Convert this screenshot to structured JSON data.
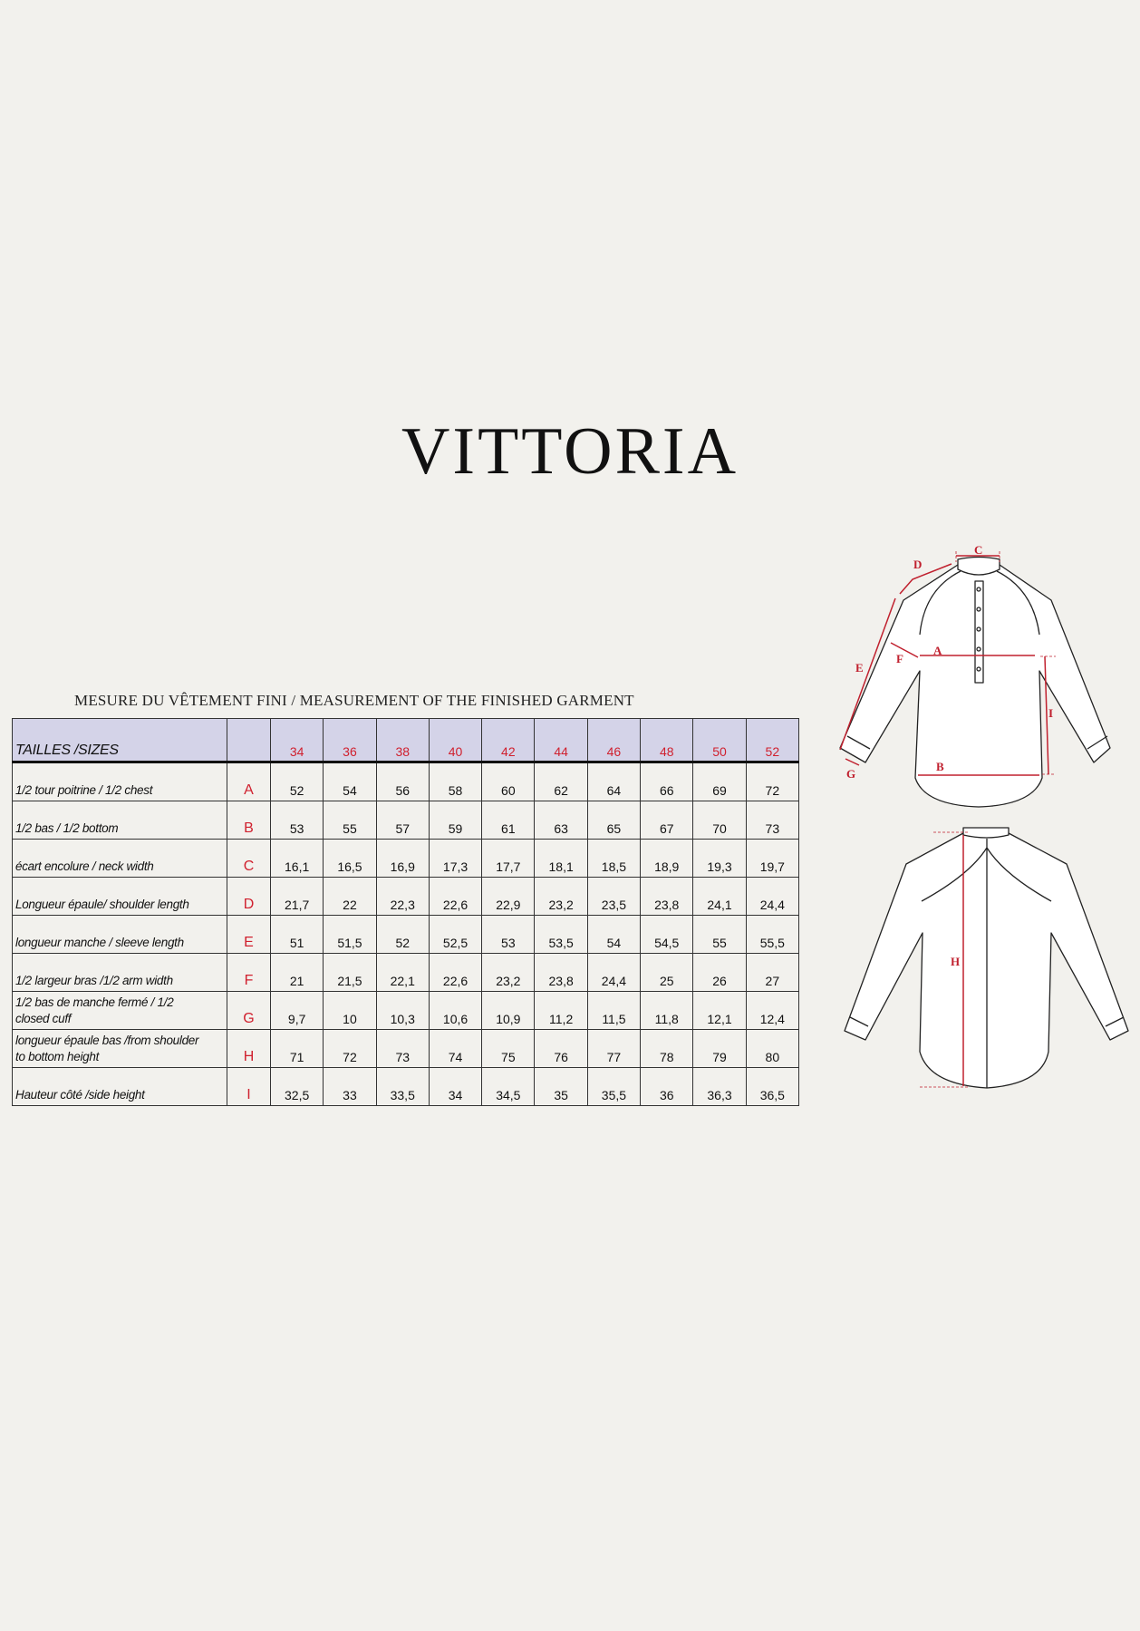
{
  "title": "VITTORIA",
  "subtitle": "MESURE DU VÊTEMENT FINI / MEASUREMENT OF THE FINISHED GARMENT",
  "table": {
    "header_label": "TAILLES /SIZES",
    "sizes": [
      "34",
      "36",
      "38",
      "40",
      "42",
      "44",
      "46",
      "48",
      "50",
      "52"
    ],
    "rows": [
      {
        "label": "1/2 tour poitrine / 1/2 chest",
        "letter": "A",
        "values": [
          "52",
          "54",
          "56",
          "58",
          "60",
          "62",
          "64",
          "66",
          "69",
          "72"
        ]
      },
      {
        "label": "1/2 bas / 1/2 bottom",
        "letter": "B",
        "values": [
          "53",
          "55",
          "57",
          "59",
          "61",
          "63",
          "65",
          "67",
          "70",
          "73"
        ]
      },
      {
        "label": "écart encolure  / neck width",
        "letter": "C",
        "values": [
          "16,1",
          "16,5",
          "16,9",
          "17,3",
          "17,7",
          "18,1",
          "18,5",
          "18,9",
          "19,3",
          "19,7"
        ]
      },
      {
        "label": "Longueur épaule/ shoulder length",
        "letter": "D",
        "values": [
          "21,7",
          "22",
          "22,3",
          "22,6",
          "22,9",
          "23,2",
          "23,5",
          "23,8",
          "24,1",
          "24,4"
        ]
      },
      {
        "label": "longueur manche  / sleeve length",
        "letter": "E",
        "values": [
          "51",
          "51,5",
          "52",
          "52,5",
          "53",
          "53,5",
          "54",
          "54,5",
          "55",
          "55,5"
        ]
      },
      {
        "label": "1/2 largeur bras /1/2  arm width",
        "letter": "F",
        "values": [
          "21",
          "21,5",
          "22,1",
          "22,6",
          "23,2",
          "23,8",
          "24,4",
          "25",
          "26",
          "27"
        ]
      },
      {
        "label": "1/2 bas de manche fermé  / 1/2\nclosed cuff",
        "letter": "G",
        "values": [
          "9,7",
          "10",
          "10,3",
          "10,6",
          "10,9",
          "11,2",
          "11,5",
          "11,8",
          "12,1",
          "12,4"
        ]
      },
      {
        "label": "longueur épaule bas  /from shoulder\nto bottom height",
        "letter": "H",
        "values": [
          "71",
          "72",
          "73",
          "74",
          "75",
          "76",
          "77",
          "78",
          "79",
          "80"
        ]
      },
      {
        "label": "Hauteur côté  /side height",
        "letter": "I",
        "values": [
          "32,5",
          "33",
          "33,5",
          "34",
          "34,5",
          "35",
          "35,5",
          "36",
          "36,3",
          "36,5"
        ]
      }
    ]
  },
  "diagram": {
    "labels": {
      "A": "A",
      "B": "B",
      "C": "C",
      "D": "D",
      "E": "E",
      "F": "F",
      "G": "G",
      "H": "H",
      "I": "I"
    },
    "accent_color": "#c0202e",
    "header_color": "#d4d3e8"
  }
}
